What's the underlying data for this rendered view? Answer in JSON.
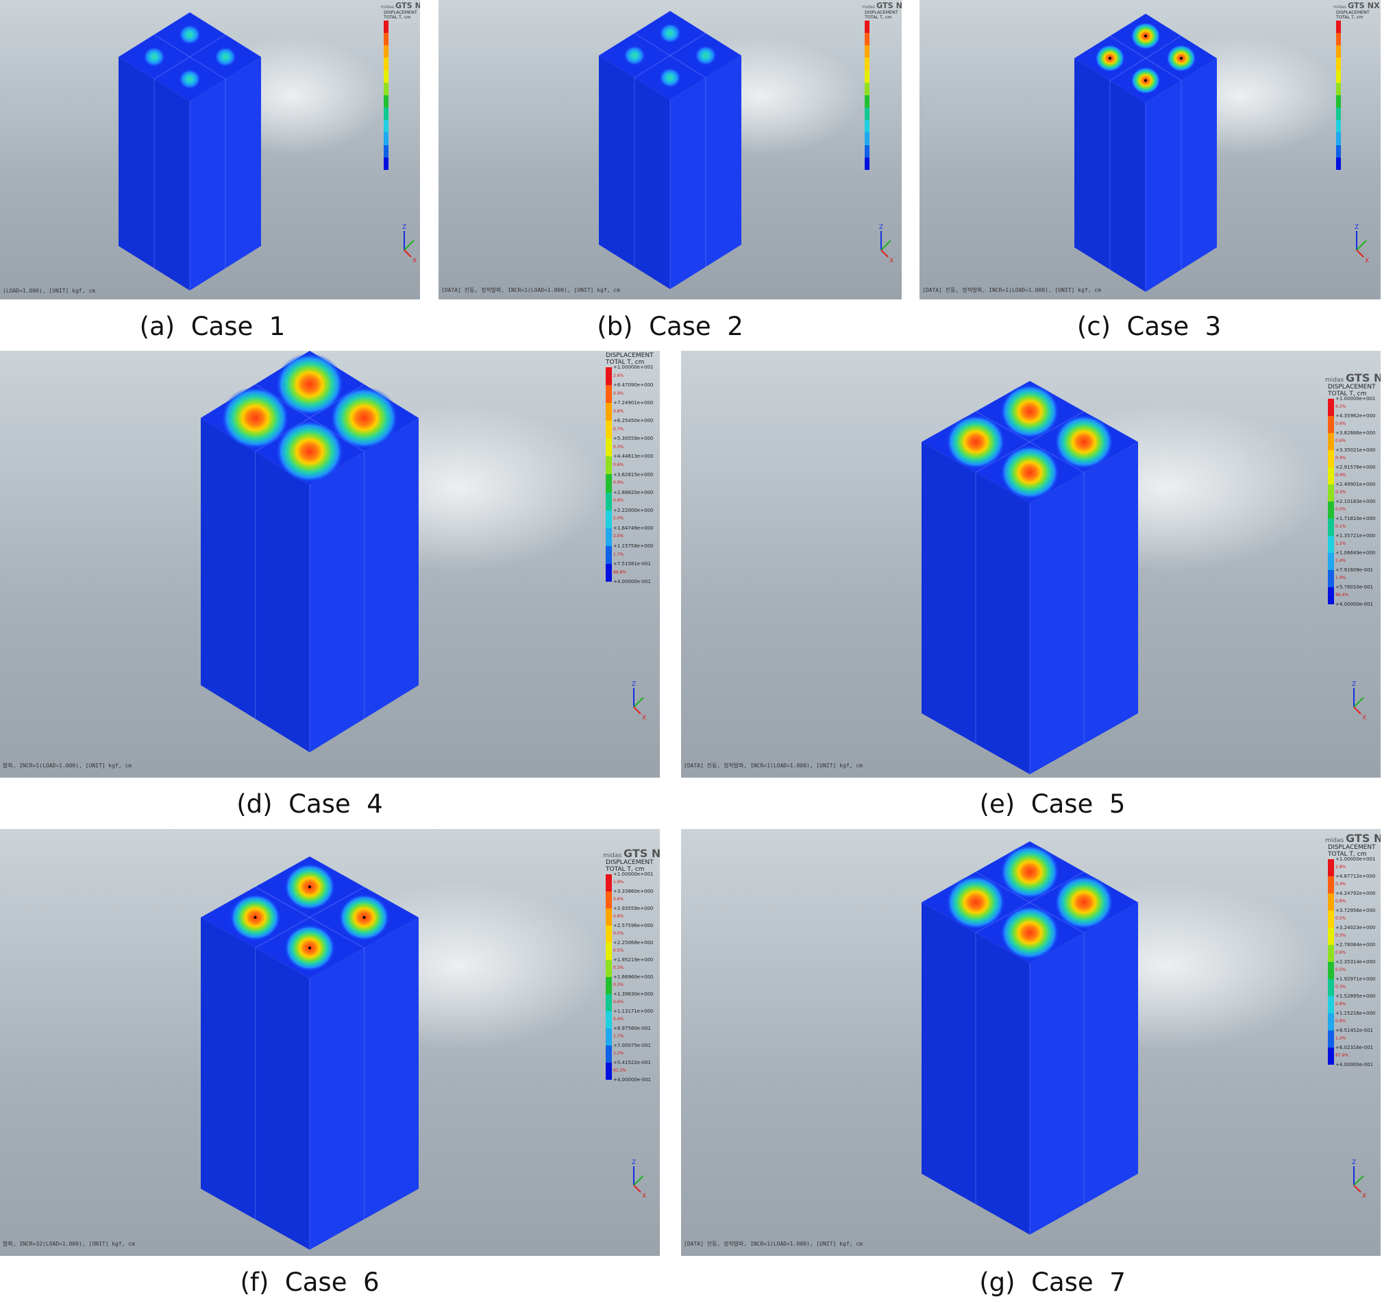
{
  "captions": {
    "a": "(a)  Case  1",
    "b": "(b)  Case  2",
    "c": "(c)  Case  3",
    "d": "(d)  Case  4",
    "e": "(e)  Case  5",
    "f": "(f)  Case  6",
    "g": "(g)  Case  7"
  },
  "logo": {
    "small": "midas",
    "main": "GTS NX"
  },
  "legend_title": {
    "line1": "DISPLACEMENT",
    "line2": "TOTAL T, cm"
  },
  "legend_colors": [
    "#e8141a",
    "#ff6010",
    "#ffa500",
    "#ffd400",
    "#e6ee00",
    "#90e020",
    "#22c030",
    "#10c890",
    "#20d0e0",
    "#20a8f0",
    "#1060e8",
    "#0010e0"
  ],
  "legends": {
    "d": {
      "ticks": [
        "+1.00000e+001",
        "+8.47090e+000",
        "+7.24901e+000",
        "+6.25450e+000",
        "+5.30559e+000",
        "+4.44613e+000",
        "+3.62815e+000",
        "+2.88820e+000",
        "+2.22000e+000",
        "+1.64749e+000",
        "+1.15758e+000",
        "+7.51581e-001",
        "+4.00000e-001"
      ],
      "pcts": [
        "2.6%",
        "0.9%",
        "0.8%",
        "0.7%",
        "0.3%",
        "0.6%",
        "0.9%",
        "0.9%",
        "1.0%",
        "2.0%",
        "1.7%",
        "88.8%"
      ]
    },
    "e": {
      "ticks": [
        "+1.00000e+001",
        "+4.35962e+000",
        "+3.82686e+000",
        "+3.35021e+000",
        "+2.91576e+000",
        "+2.49901e+000",
        "+2.10183e+000",
        "+1.71810e+000",
        "+1.35721e+000",
        "+1.06649e+000",
        "+7.91609e-001",
        "+5.78010e-001",
        "+4.00000e-001"
      ],
      "pcts": [
        "6.2%",
        "0.6%",
        "0.6%",
        "0.4%",
        "0.4%",
        "0.3%",
        "0.5%",
        "0.1%",
        "1.2%",
        "1.4%",
        "1.9%",
        "86.4%"
      ]
    },
    "f": {
      "ticks": [
        "+1.00000e+001",
        "+3.33860e+000",
        "+2.93559e+000",
        "+2.57596e+000",
        "+2.25068e+000",
        "+1.95219e+000",
        "+1.66960e+000",
        "+1.39630e+000",
        "+1.13171e+000",
        "+8.97560e-001",
        "+7.00075e-001",
        "+5.41522e-001",
        "+4.00000e-001"
      ],
      "pcts": [
        "1.9%",
        "0.6%",
        "0.8%",
        "0.5%",
        "0.5%",
        "0.3%",
        "0.3%",
        "0.6%",
        "0.4%",
        "1.7%",
        "1.2%",
        "91.3%"
      ]
    },
    "g": {
      "ticks": [
        "+1.00000e+001",
        "+4.87712e+000",
        "+4.24792e+000",
        "+3.72956e+000",
        "+3.24023e+000",
        "+2.78084e+000",
        "+2.35314e+000",
        "+1.92971e+000",
        "+1.52895e+000",
        "+1.15216e+000",
        "+8.51452e-001",
        "+6.02316e-001",
        "+4.00000e-001"
      ],
      "pcts": [
        "2.8%",
        "0.4%",
        "0.8%",
        "0.5%",
        "0.3%",
        "0.6%",
        "0.5%",
        "0.3%",
        "0.8%",
        "0.8%",
        "1.2%",
        "87.9%"
      ]
    }
  },
  "status": {
    "a": "(LOAD=1.000), [UNIT] kgf, cm",
    "b": "[DATA] 진동, 정적발파, INCR=1(LOAD=1.000), [UNIT] kgf, cm",
    "c": "[DATA] 진동, 정적발파, INCR=1(LOAD=1.000), [UNIT] kgf, cm",
    "d": "발파, INCR=1(LOAD=1.000), [UNIT] kgf, cm",
    "e": "[DATA] 진동, 정적발파, INCR=1(LOAD=1.000), [UNIT] kgf, cm",
    "f": "발파, INCR=32(LOAD=1.000), [UNIT] kgf, cm",
    "g": "[DATA] 진동, 정적발파, INCR=1(LOAD=1.000), [UNIT] kgf, cm"
  },
  "panels": {
    "a": {
      "hot_intensity": 0.15,
      "hot_spread": 0.6,
      "point_marker": false
    },
    "b": {
      "hot_intensity": 0.2,
      "hot_spread": 0.6,
      "point_marker": false
    },
    "c": {
      "hot_intensity": 0.75,
      "hot_spread": 0.8,
      "point_marker": true
    },
    "d": {
      "hot_intensity": 1.0,
      "hot_spread": 1.2,
      "point_marker": false
    },
    "e": {
      "hot_intensity": 0.95,
      "hot_spread": 1.05,
      "point_marker": false
    },
    "f": {
      "hot_intensity": 0.85,
      "hot_spread": 0.9,
      "point_marker": true
    },
    "g": {
      "hot_intensity": 0.95,
      "hot_spread": 1.05,
      "point_marker": false
    }
  }
}
